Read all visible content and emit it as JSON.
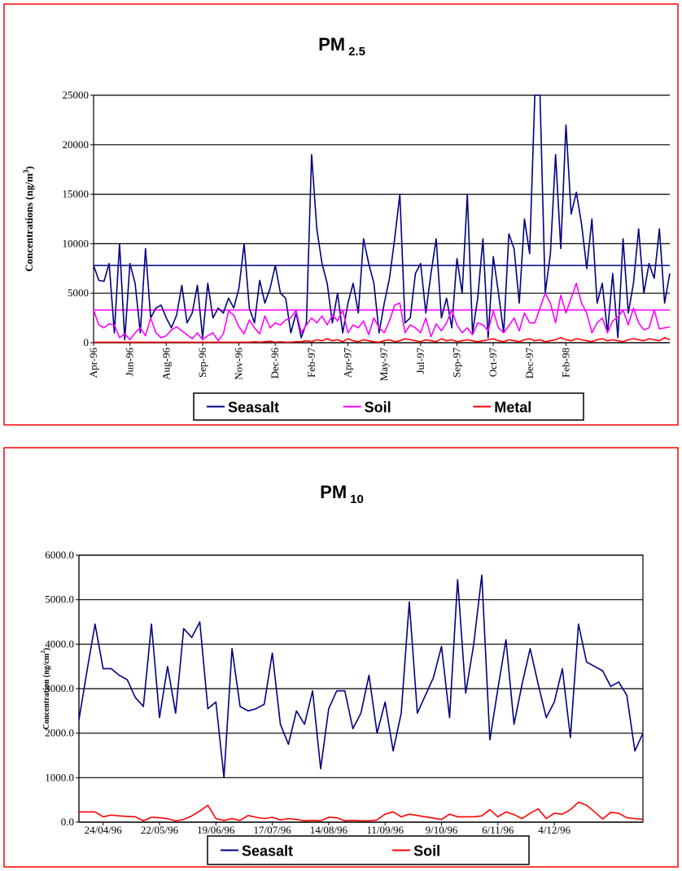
{
  "chart_data": [
    {
      "type": "line",
      "title": "PM",
      "title_subscript": "2.5",
      "y_label": [
        "Concentrations (ng/m",
        "3",
        ")"
      ],
      "categories": [
        "Apr-96",
        null,
        null,
        null,
        null,
        null,
        null,
        "Jun-96",
        null,
        null,
        null,
        null,
        null,
        null,
        "Aug-96",
        null,
        null,
        null,
        null,
        null,
        null,
        "Sep-96",
        null,
        null,
        null,
        null,
        null,
        null,
        "Nov-96",
        null,
        null,
        null,
        null,
        null,
        null,
        "Dec-96",
        null,
        null,
        null,
        null,
        null,
        null,
        "Feb-97",
        null,
        null,
        null,
        null,
        null,
        null,
        "Apr-97",
        null,
        null,
        null,
        null,
        null,
        null,
        "May-97",
        null,
        null,
        null,
        null,
        null,
        null,
        "Jul-97",
        null,
        null,
        null,
        null,
        null,
        null,
        "Sep-97",
        null,
        null,
        null,
        null,
        null,
        null,
        "Oct-97",
        null,
        null,
        null,
        null,
        null,
        null,
        "Dec-97",
        null,
        null,
        null,
        null,
        null,
        null,
        "Feb-98",
        null,
        null,
        null,
        null,
        null,
        null,
        null,
        null,
        null,
        null,
        null,
        null,
        null,
        null,
        null,
        null,
        null,
        null,
        null,
        null
      ],
      "ylim": [
        0,
        25000
      ],
      "yticks": [
        0,
        5000,
        10000,
        15000,
        20000,
        25000
      ],
      "grid": true,
      "series": [
        {
          "name": "Seasalt",
          "color": "#000080",
          "values": [
            7800,
            6300,
            6200,
            8000,
            1000,
            10000,
            300,
            8000,
            6000,
            1000,
            9500,
            2500,
            3500,
            3800,
            2500,
            1500,
            2800,
            5800,
            2000,
            3000,
            5800,
            500,
            6000,
            2500,
            3500,
            3000,
            4500,
            3500,
            5500,
            10000,
            3500,
            2000,
            6300,
            4000,
            5500,
            7800,
            5000,
            4500,
            1000,
            3000,
            500,
            2000,
            19000,
            11500,
            8000,
            6000,
            2000,
            5000,
            1000,
            4000,
            6000,
            3000,
            10500,
            8000,
            6000,
            1000,
            4000,
            6500,
            10500,
            15000,
            2000,
            2500,
            7000,
            8000,
            3000,
            7000,
            10500,
            2500,
            4500,
            1500,
            8500,
            5000,
            15000,
            1000,
            4500,
            10500,
            500,
            8700,
            5000,
            1000,
            11000,
            9500,
            4000,
            12500,
            9000,
            25000,
            25000,
            5000,
            9000,
            19000,
            9500,
            22000,
            13000,
            15200,
            12000,
            7500,
            12500,
            4000,
            6000,
            1000,
            7000,
            500,
            10500,
            3000,
            6000,
            11500,
            5000,
            8000,
            6500,
            11500,
            4000,
            7000
          ]
        },
        {
          "name": "Soil",
          "color": "#ff00ff",
          "values": [
            3300,
            1800,
            1500,
            1900,
            1800,
            500,
            900,
            300,
            1000,
            1500,
            700,
            2500,
            1000,
            500,
            700,
            1300,
            1600,
            1200,
            800,
            400,
            1000,
            300,
            700,
            1000,
            200,
            900,
            3200,
            2800,
            1600,
            900,
            2300,
            1500,
            900,
            2700,
            1500,
            2000,
            1800,
            2300,
            2500,
            3300,
            1000,
            1800,
            2500,
            2000,
            2700,
            1800,
            2800,
            2200,
            3300,
            1000,
            1800,
            1500,
            2200,
            800,
            2500,
            1500,
            1000,
            2200,
            3800,
            4000,
            1000,
            1800,
            1500,
            1000,
            2500,
            600,
            1900,
            1200,
            2000,
            3300,
            1800,
            1000,
            1500,
            800,
            2000,
            1800,
            1200,
            3200,
            1500,
            1000,
            1700,
            2500,
            1200,
            3000,
            2000,
            2000,
            3500,
            5000,
            4000,
            2000,
            4800,
            3000,
            4500,
            6000,
            4000,
            3000,
            1000,
            2000,
            2500,
            1000,
            2200,
            2600,
            3300,
            1800,
            3500,
            2000,
            1300,
            1500,
            3300,
            1400,
            1500,
            1600
          ]
        },
        {
          "name": "Metal",
          "color": "#ff0000",
          "values": [
            50,
            50,
            50,
            50,
            50,
            50,
            50,
            50,
            50,
            50,
            50,
            50,
            50,
            50,
            50,
            50,
            50,
            50,
            50,
            50,
            50,
            50,
            50,
            50,
            50,
            50,
            50,
            50,
            50,
            50,
            50,
            100,
            50,
            100,
            150,
            50,
            100,
            50,
            50,
            100,
            100,
            200,
            100,
            300,
            200,
            400,
            200,
            300,
            100,
            400,
            200,
            100,
            300,
            200,
            100,
            50,
            200,
            300,
            100,
            200,
            400,
            300,
            200,
            100,
            300,
            200,
            100,
            400,
            200,
            300,
            100,
            200,
            300,
            200,
            100,
            200,
            300,
            400,
            200,
            100,
            300,
            200,
            100,
            300,
            400,
            200,
            300,
            100,
            200,
            300,
            500,
            300,
            200,
            400,
            300,
            200,
            100,
            300,
            400,
            200,
            300,
            200,
            100,
            300,
            400,
            300,
            200,
            400,
            300,
            200,
            500,
            300
          ]
        }
      ],
      "reference_lines": [
        {
          "value": 7800,
          "color": "#000080"
        },
        {
          "value": 3300,
          "color": "#ff00ff"
        }
      ]
    },
    {
      "type": "line",
      "title": "PM",
      "title_subscript": "10",
      "y_label": [
        "Concentration (ng/cm",
        "2",
        ")"
      ],
      "categories": [
        null,
        null,
        null,
        "24/04/96",
        null,
        null,
        null,
        null,
        null,
        null,
        "22/05/96",
        null,
        null,
        null,
        null,
        null,
        null,
        "19/06/96",
        null,
        null,
        null,
        null,
        null,
        null,
        "17/07/96",
        null,
        null,
        null,
        null,
        null,
        null,
        "14/08/96",
        null,
        null,
        null,
        null,
        null,
        null,
        "11/09/96",
        null,
        null,
        null,
        null,
        null,
        null,
        "9/10/96",
        null,
        null,
        null,
        null,
        null,
        null,
        "6/11/96",
        null,
        null,
        null,
        null,
        null,
        null,
        "4/12/96",
        null,
        null,
        null,
        null,
        null,
        null,
        null,
        null,
        null,
        null,
        null
      ],
      "ylim": [
        0,
        6000
      ],
      "yticks": [
        {
          "value": 0,
          "label": "0.0"
        },
        {
          "value": 1000,
          "label": "1000.0"
        },
        {
          "value": 2000,
          "label": "2000.0"
        },
        {
          "value": 3000,
          "label": "3000.0"
        },
        {
          "value": 4000,
          "label": "4000.0"
        },
        {
          "value": 5000,
          "label": "5000.0"
        },
        {
          "value": 6000,
          "label": "6000.0"
        }
      ],
      "grid": true,
      "series": [
        {
          "name": "Seasalt",
          "color": "#000080",
          "values": [
            2300,
            3400,
            4450,
            3450,
            3450,
            3300,
            3200,
            2800,
            2600,
            4450,
            2350,
            3500,
            2450,
            4350,
            4150,
            4500,
            2550,
            2700,
            1000,
            3900,
            2600,
            2500,
            2550,
            2650,
            3800,
            2200,
            1750,
            2500,
            2200,
            2950,
            1200,
            2550,
            2950,
            2950,
            2100,
            2450,
            3300,
            2000,
            2700,
            1600,
            2450,
            4950,
            2450,
            2850,
            3250,
            3950,
            2350,
            5450,
            2900,
            4000,
            5550,
            1850,
            3000,
            4100,
            2200,
            3100,
            3900,
            3100,
            2350,
            2700,
            3450,
            1900,
            4450,
            3600,
            3500,
            3400,
            3050,
            3150,
            2850,
            1600,
            2000
          ]
        },
        {
          "name": "Soil",
          "color": "#ff0000",
          "values": [
            230,
            230,
            230,
            120,
            160,
            140,
            130,
            120,
            30,
            110,
            100,
            80,
            30,
            60,
            140,
            250,
            380,
            80,
            40,
            80,
            40,
            150,
            110,
            80,
            110,
            50,
            80,
            60,
            30,
            40,
            30,
            110,
            100,
            30,
            40,
            30,
            30,
            50,
            180,
            230,
            120,
            180,
            150,
            120,
            90,
            60,
            180,
            120,
            120,
            120,
            140,
            280,
            120,
            230,
            170,
            80,
            200,
            300,
            80,
            200,
            180,
            280,
            450,
            380,
            230,
            70,
            220,
            200,
            100,
            80,
            60
          ]
        }
      ]
    }
  ]
}
